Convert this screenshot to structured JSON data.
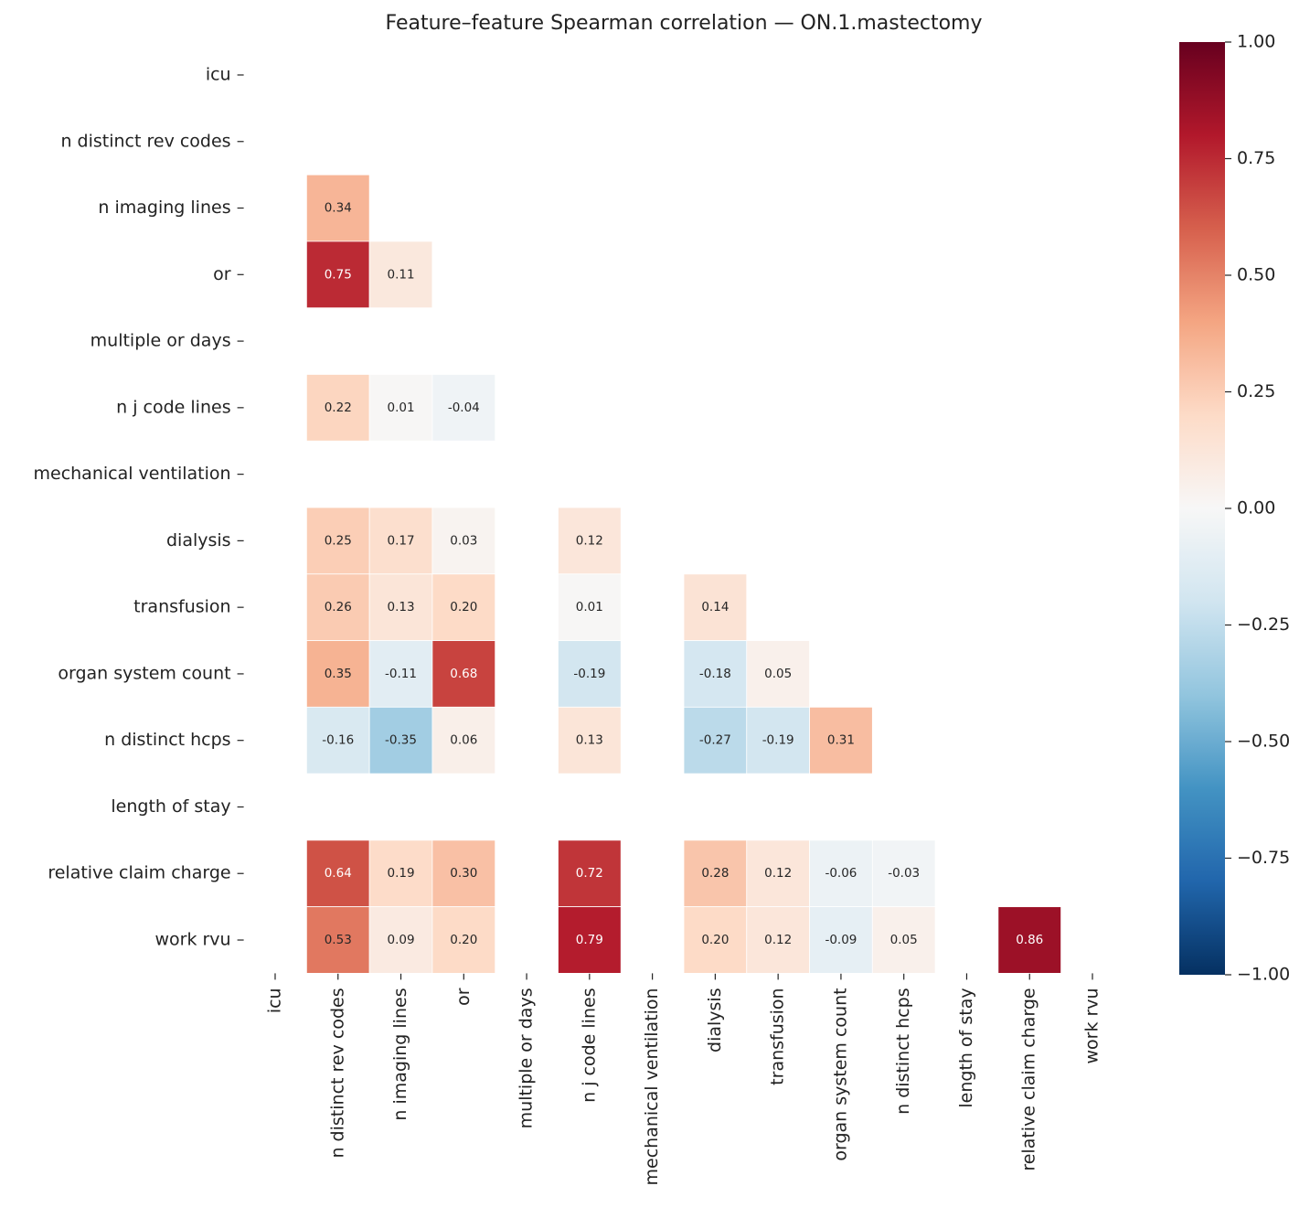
{
  "chart_data": {
    "type": "heatmap",
    "title": "Feature–feature Spearman correlation — ON.1.mastectomy",
    "x": [
      "icu",
      "n distinct rev codes",
      "n imaging lines",
      "or",
      "multiple or days",
      "n j code lines",
      "mechanical ventilation",
      "dialysis",
      "transfusion",
      "organ system count",
      "n distinct hcps",
      "length of stay",
      "relative claim charge",
      "work rvu"
    ],
    "y": [
      "icu",
      "n distinct rev codes",
      "n imaging lines",
      "or",
      "multiple or days",
      "n j code lines",
      "mechanical ventilation",
      "dialysis",
      "transfusion",
      "organ system count",
      "n distinct hcps",
      "length of stay",
      "relative claim charge",
      "work rvu"
    ],
    "values": [
      [
        null,
        null,
        null,
        null,
        null,
        null,
        null,
        null,
        null,
        null,
        null,
        null,
        null,
        null
      ],
      [
        null,
        null,
        null,
        null,
        null,
        null,
        null,
        null,
        null,
        null,
        null,
        null,
        null,
        null
      ],
      [
        null,
        0.34,
        null,
        null,
        null,
        null,
        null,
        null,
        null,
        null,
        null,
        null,
        null,
        null
      ],
      [
        null,
        0.75,
        0.11,
        null,
        null,
        null,
        null,
        null,
        null,
        null,
        null,
        null,
        null,
        null
      ],
      [
        null,
        null,
        null,
        null,
        null,
        null,
        null,
        null,
        null,
        null,
        null,
        null,
        null,
        null
      ],
      [
        null,
        0.22,
        0.01,
        -0.04,
        null,
        null,
        null,
        null,
        null,
        null,
        null,
        null,
        null,
        null
      ],
      [
        null,
        null,
        null,
        null,
        null,
        null,
        null,
        null,
        null,
        null,
        null,
        null,
        null,
        null
      ],
      [
        null,
        0.25,
        0.17,
        0.03,
        null,
        0.12,
        null,
        null,
        null,
        null,
        null,
        null,
        null,
        null
      ],
      [
        null,
        0.26,
        0.13,
        0.2,
        null,
        0.01,
        null,
        0.14,
        null,
        null,
        null,
        null,
        null,
        null
      ],
      [
        null,
        0.35,
        -0.11,
        0.68,
        null,
        -0.19,
        null,
        -0.18,
        0.05,
        null,
        null,
        null,
        null,
        null
      ],
      [
        null,
        -0.16,
        -0.35,
        0.06,
        null,
        0.13,
        null,
        -0.27,
        -0.19,
        0.31,
        null,
        null,
        null,
        null
      ],
      [
        null,
        null,
        null,
        null,
        null,
        null,
        null,
        null,
        null,
        null,
        null,
        null,
        null,
        null
      ],
      [
        null,
        0.64,
        0.19,
        0.3,
        null,
        0.72,
        null,
        0.28,
        0.12,
        -0.06,
        -0.03,
        null,
        null,
        null
      ],
      [
        null,
        0.53,
        0.09,
        0.2,
        null,
        0.79,
        null,
        0.2,
        0.12,
        -0.09,
        0.05,
        null,
        0.86,
        null
      ]
    ],
    "value_labels": [
      [
        null,
        null,
        null,
        null,
        null,
        null,
        null,
        null,
        null,
        null,
        null,
        null,
        null,
        null
      ],
      [
        null,
        null,
        null,
        null,
        null,
        null,
        null,
        null,
        null,
        null,
        null,
        null,
        null,
        null
      ],
      [
        null,
        "0.34",
        null,
        null,
        null,
        null,
        null,
        null,
        null,
        null,
        null,
        null,
        null,
        null
      ],
      [
        null,
        "0.75",
        "0.11",
        null,
        null,
        null,
        null,
        null,
        null,
        null,
        null,
        null,
        null,
        null
      ],
      [
        null,
        null,
        null,
        null,
        null,
        null,
        null,
        null,
        null,
        null,
        null,
        null,
        null,
        null
      ],
      [
        null,
        "0.22",
        "0.01",
        "-0.04",
        null,
        null,
        null,
        null,
        null,
        null,
        null,
        null,
        null,
        null
      ],
      [
        null,
        null,
        null,
        null,
        null,
        null,
        null,
        null,
        null,
        null,
        null,
        null,
        null,
        null
      ],
      [
        null,
        "0.25",
        "0.17",
        "0.03",
        null,
        "0.12",
        null,
        null,
        null,
        null,
        null,
        null,
        null,
        null
      ],
      [
        null,
        "0.26",
        "0.13",
        "0.20",
        null,
        "0.01",
        null,
        "0.14",
        null,
        null,
        null,
        null,
        null,
        null
      ],
      [
        null,
        "0.35",
        "-0.11",
        "0.68",
        null,
        "-0.19",
        null,
        "-0.18",
        "0.05",
        null,
        null,
        null,
        null,
        null
      ],
      [
        null,
        "-0.16",
        "-0.35",
        "0.06",
        null,
        "0.13",
        null,
        "-0.27",
        "-0.19",
        "0.31",
        null,
        null,
        null,
        null
      ],
      [
        null,
        null,
        null,
        null,
        null,
        null,
        null,
        null,
        null,
        null,
        null,
        null,
        null,
        null
      ],
      [
        null,
        "0.64",
        "0.19",
        "0.30",
        null,
        "0.72",
        null,
        "0.28",
        "0.12",
        "-0.06",
        "-0.03",
        null,
        null,
        null
      ],
      [
        null,
        "0.53",
        "0.09",
        "0.20",
        null,
        "0.79",
        null,
        "0.20",
        "0.12",
        "-0.09",
        "0.05",
        null,
        "0.86",
        null
      ]
    ],
    "colormap": "RdBu_r",
    "zlim": [
      -1,
      1
    ],
    "zticks": [
      {
        "value": -1,
        "label": "−1.00"
      },
      {
        "value": -0.75,
        "label": "−0.75"
      },
      {
        "value": -0.5,
        "label": "−0.50"
      },
      {
        "value": -0.25,
        "label": "−0.25"
      },
      {
        "value": 0,
        "label": "0.00"
      },
      {
        "value": 0.25,
        "label": "0.25"
      },
      {
        "value": 0.5,
        "label": "0.50"
      },
      {
        "value": 0.75,
        "label": "0.75"
      },
      {
        "value": 1,
        "label": "1.00"
      }
    ]
  }
}
